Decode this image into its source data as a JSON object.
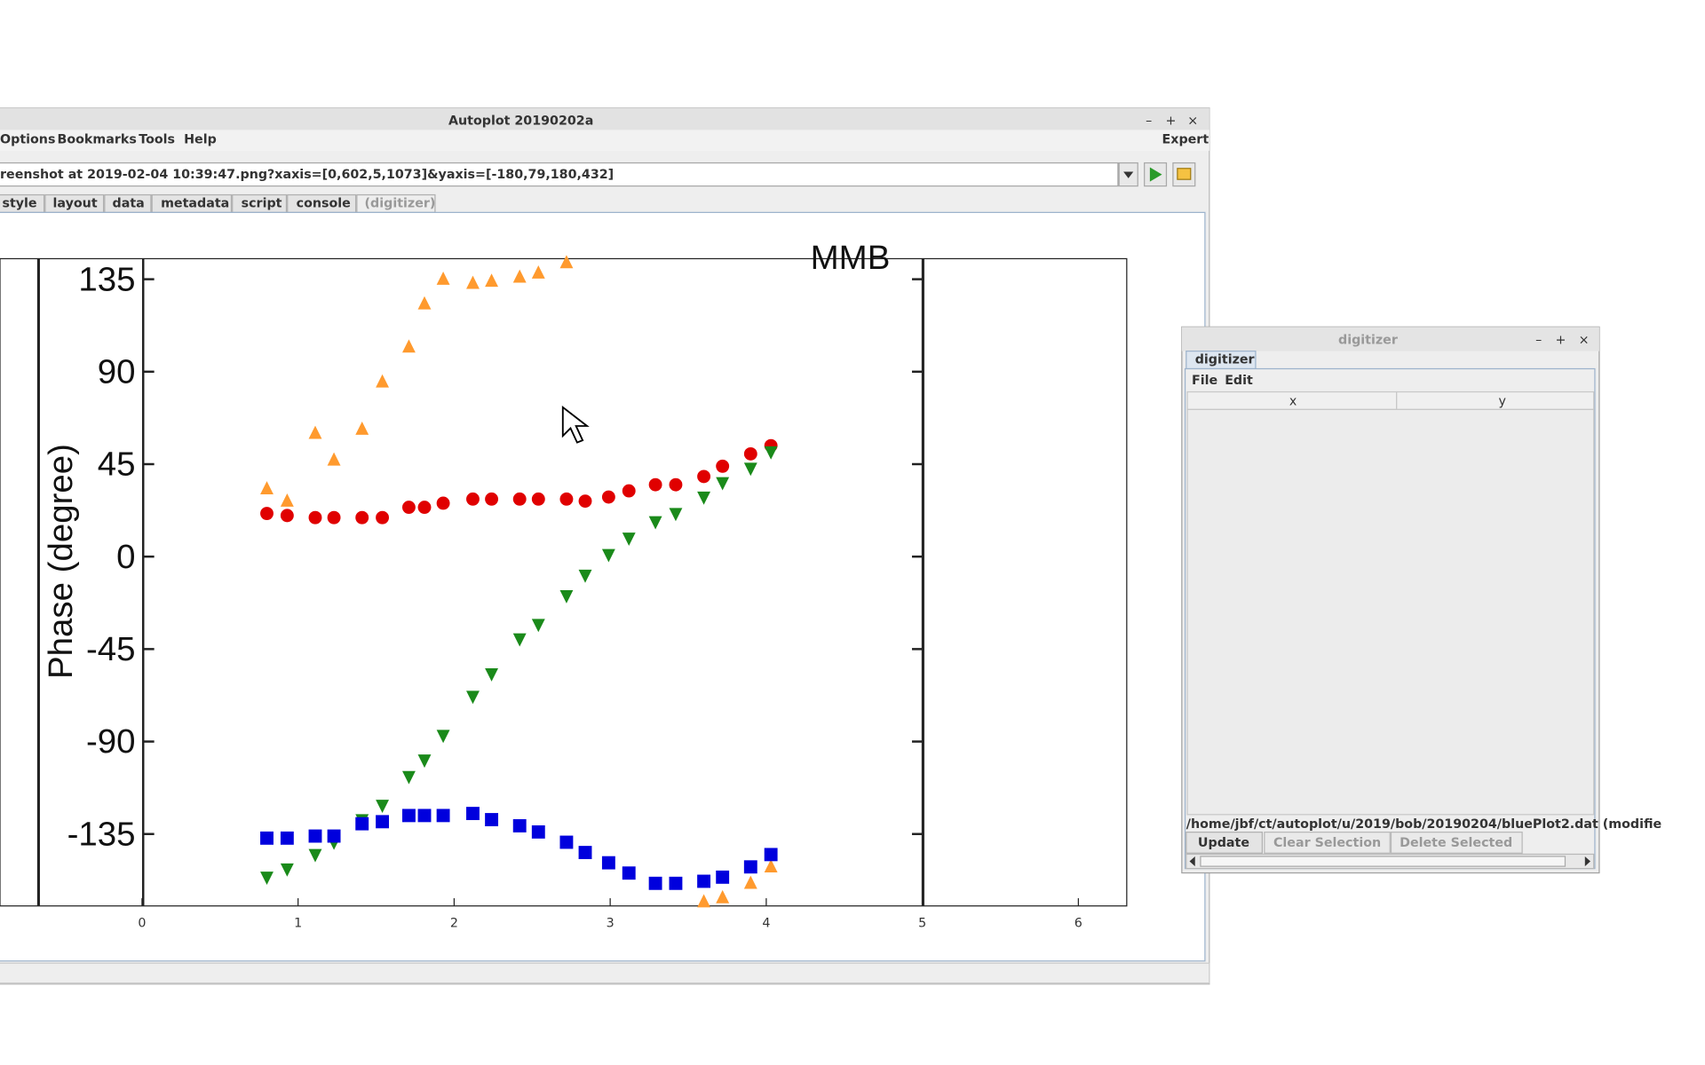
{
  "main_window": {
    "title": "Autoplot 20190202a",
    "menus": [
      "Options",
      "Bookmarks",
      "Tools",
      "Help"
    ],
    "expert": "Expert",
    "url": "reenshot at 2019-02-04 10:39:47.png?xaxis=[0,602,5,1073]&yaxis=[-180,79,180,432]",
    "tabs": [
      "style",
      "layout",
      "data",
      "metadata",
      "script",
      "console",
      "(digitizer)"
    ]
  },
  "chart_data": {
    "type": "scatter",
    "ylabel": "Phase (degree)",
    "annotation": "MMB",
    "x": [
      0.8,
      0.93,
      1.11,
      1.23,
      1.41,
      1.54,
      1.71,
      1.81,
      1.93,
      2.12,
      2.24,
      2.42,
      2.54,
      2.72,
      2.84,
      2.99,
      3.12,
      3.29,
      3.42,
      3.6,
      3.72,
      3.9,
      4.03
    ],
    "xlim": [
      -0.91,
      6.31
    ],
    "xticks": [
      0,
      1,
      2,
      3,
      4,
      5,
      6
    ],
    "ylim": [
      -170,
      145
    ],
    "yticks": [
      135,
      90,
      45,
      0,
      -45,
      -90,
      -135
    ],
    "series": [
      {
        "color": "#ff9a2e",
        "marker": "triangle-up",
        "values": [
          33,
          27,
          60,
          47,
          62,
          85,
          102,
          123,
          135,
          133,
          134,
          136,
          138,
          143,
          null,
          null,
          null,
          null,
          null,
          -168,
          -166,
          -159,
          -151
        ]
      },
      {
        "color": "#e00000",
        "marker": "circle",
        "values": [
          21,
          20,
          19,
          19,
          19,
          19,
          24,
          24,
          26,
          28,
          28,
          28,
          28,
          28,
          27,
          29,
          32,
          35,
          35,
          39,
          44,
          50,
          54
        ]
      },
      {
        "color": "#1a8a1a",
        "marker": "triangle-down",
        "values": [
          -156,
          -152,
          -145,
          -139,
          -128,
          -121,
          -107,
          -99,
          -87,
          -68,
          -57,
          -40,
          -33,
          -19,
          -9,
          1,
          9,
          17,
          21,
          29,
          36,
          43,
          51
        ]
      },
      {
        "color": "#0000dd",
        "marker": "square",
        "values": [
          -137,
          -137,
          -136,
          -136,
          -130,
          -129,
          -126,
          -126,
          -126,
          -125,
          -128,
          -131,
          -134,
          -139,
          -144,
          -149,
          -154,
          -159,
          -159,
          -158,
          -156,
          -151,
          -145
        ]
      }
    ]
  },
  "digitizer": {
    "title": "digitizer",
    "tab": "digitizer",
    "menus": [
      "File",
      "Edit"
    ],
    "columns": [
      "x",
      "y"
    ],
    "file": "/home/jbf/ct/autoplot/u/2019/bob/20190204/bluePlot2.dat (modifie",
    "buttons": [
      "Update",
      "Clear Selection",
      "Delete Selected"
    ]
  }
}
